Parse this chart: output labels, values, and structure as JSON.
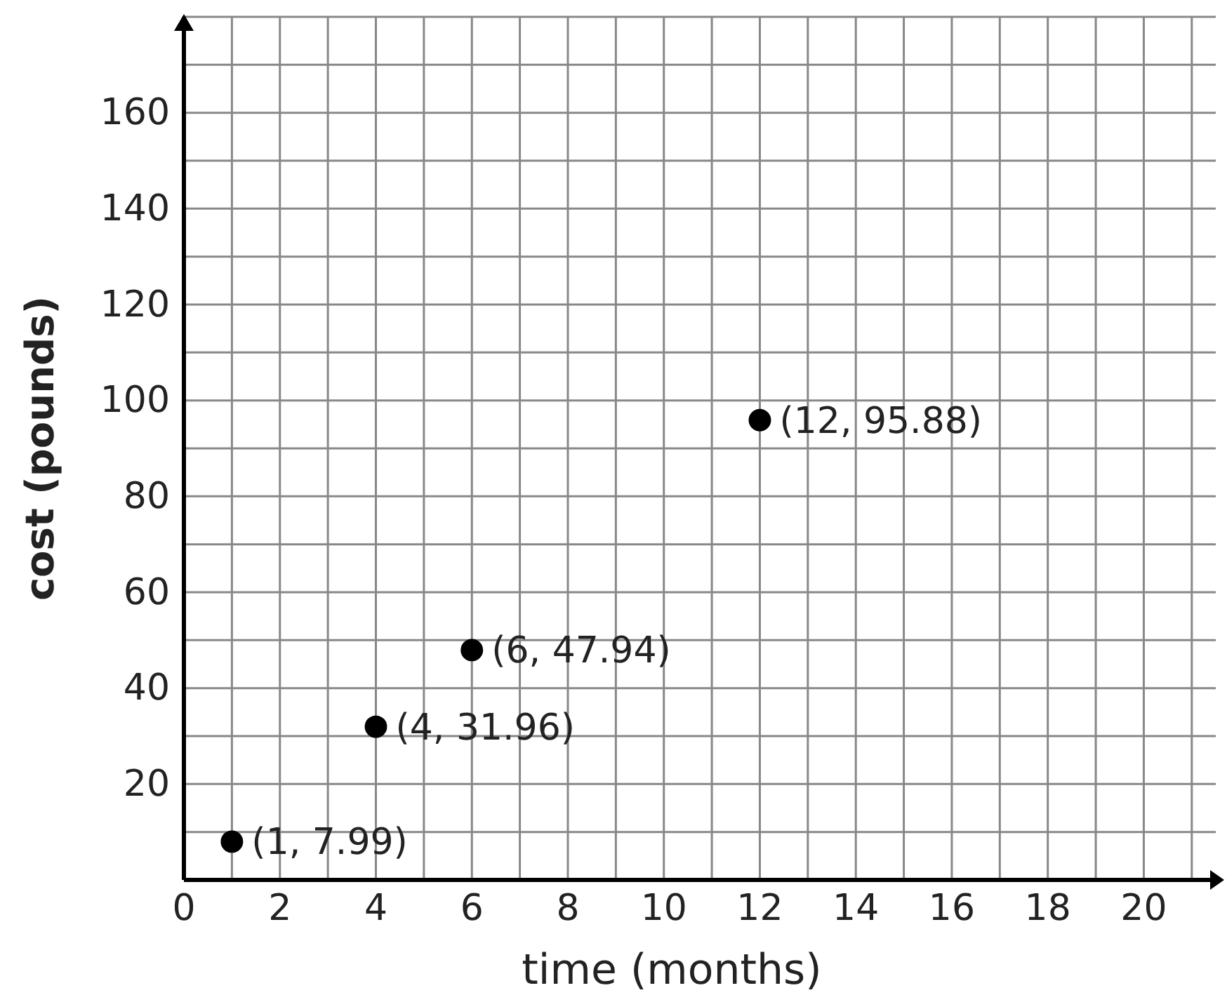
{
  "chart_data": {
    "type": "scatter",
    "xlabel": "time (months)",
    "ylabel": "cost (pounds)",
    "x": [
      1,
      4,
      6,
      12
    ],
    "values": [
      7.99,
      31.96,
      47.94,
      95.88
    ],
    "color": "#000000",
    "marker": "circle",
    "xlim": [
      0,
      21.5
    ],
    "ylim": [
      0,
      180
    ],
    "xticks": [
      0,
      {
        "value": 1,
        "label": null
      },
      2,
      {
        "value": 3,
        "label": null
      },
      4,
      {
        "value": 5,
        "label": null
      },
      6,
      {
        "value": 7,
        "label": null
      },
      8,
      {
        "value": 9,
        "label": null
      },
      10,
      {
        "value": 11,
        "label": null
      },
      12,
      {
        "value": 13,
        "label": null
      },
      14,
      {
        "value": 15,
        "label": null
      },
      16,
      {
        "value": 17,
        "label": null
      },
      18,
      {
        "value": 19,
        "label": null
      },
      20,
      {
        "value": 21,
        "label": null
      }
    ],
    "yticks": [
      {
        "value": 0,
        "label": null
      },
      {
        "value": 10,
        "label": null
      },
      20,
      {
        "value": 30,
        "label": null
      },
      40,
      {
        "value": 50,
        "label": null
      },
      60,
      {
        "value": 70,
        "label": null
      },
      80,
      {
        "value": 90,
        "label": null
      },
      100,
      {
        "value": 110,
        "label": null
      },
      120,
      {
        "value": 130,
        "label": null
      },
      140,
      {
        "value": 150,
        "label": null
      },
      160,
      {
        "value": 170,
        "label": null
      },
      {
        "value": 180,
        "label": null
      }
    ],
    "grid": true,
    "annotations": [
      {
        "text": "(1, 7.99)",
        "x": 1,
        "y": 7.99
      },
      {
        "text": "(4, 31.96)",
        "x": 4,
        "y": 31.96
      },
      {
        "text": "(6, 47.94)",
        "x": 6,
        "y": 47.94
      },
      {
        "text": "(12, 95.88)",
        "x": 12,
        "y": 95.88
      }
    ]
  }
}
